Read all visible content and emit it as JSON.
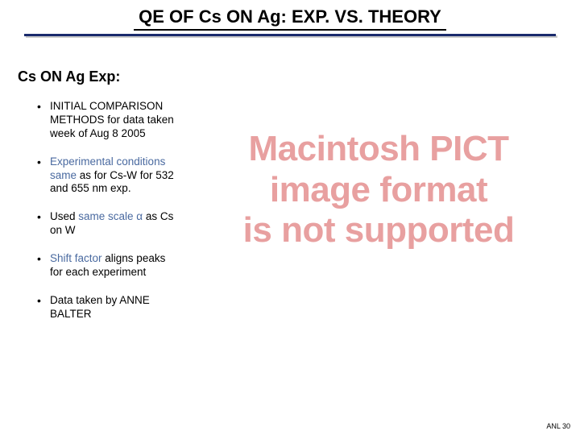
{
  "title": "QE OF Cs ON Ag:  EXP. VS. THEORY",
  "section_heading": "Cs ON Ag Exp:",
  "bullets": [
    {
      "text_before": "INITIAL COMPARISON METHODS for data taken week of Aug 8 2005",
      "highlight": "",
      "text_after": ""
    },
    {
      "text_before": "",
      "highlight": "Experimental conditions same",
      "text_after": " as for Cs-W for 532 and 655 nm exp."
    },
    {
      "text_before": "Used ",
      "highlight": "same scale α",
      "text_after": " as Cs on W"
    },
    {
      "text_before": "",
      "highlight": "Shift factor",
      "text_after": " aligns peaks for each experiment"
    },
    {
      "text_before": "Data taken by ANNE BALTER",
      "highlight": "",
      "text_after": ""
    }
  ],
  "pict_message": {
    "line1": "Macintosh PICT",
    "line2": "image format",
    "line3": "is not supported"
  },
  "footer": "ANL 30",
  "colors": {
    "highlight": "#4a6aa0",
    "pict": "#e8a0a0",
    "title_rule": "#1a2a6c"
  }
}
